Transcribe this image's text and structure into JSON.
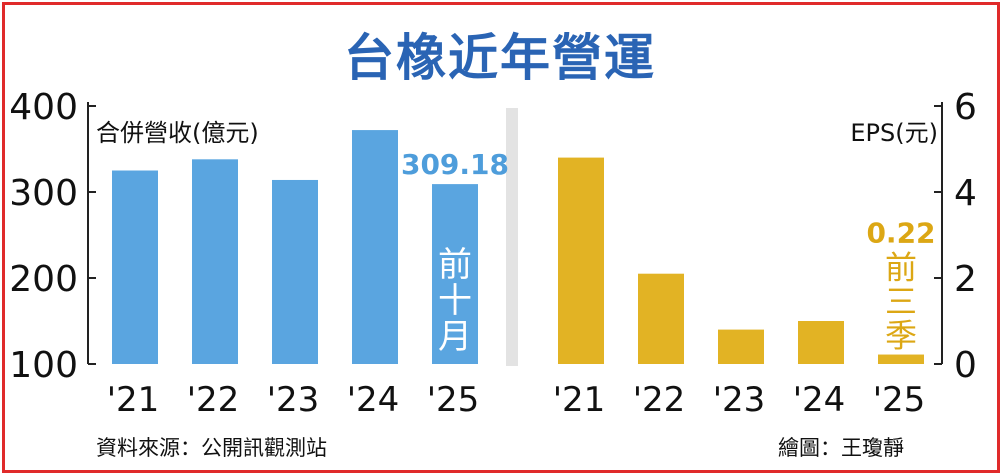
{
  "title": "台橡近年營運",
  "source": "資料來源：公開訊觀測站",
  "credit": "繪圖：王瓊靜",
  "colors": {
    "revenue": "#5aa5e0",
    "eps": "#e2b324",
    "title": "#2a64b4",
    "frame": "#e02a2a",
    "revenue_label": "#4e9ddb",
    "eps_label": "#dca714"
  },
  "chart_data": [
    {
      "type": "bar",
      "ylabel": "合併營收(億元)",
      "categories": [
        "'21",
        "'22",
        "'23",
        "'24",
        "'25"
      ],
      "values": [
        325,
        338,
        314,
        372,
        309.18
      ],
      "ylim": [
        100,
        400
      ],
      "yticks": [
        "100",
        "200",
        "300",
        "400"
      ],
      "annotation": {
        "value_label": "309.18",
        "note": [
          "前",
          "十",
          "月"
        ]
      }
    },
    {
      "type": "bar",
      "ylabel": "EPS(元)",
      "categories": [
        "'21",
        "'22",
        "'23",
        "'24",
        "'25"
      ],
      "values": [
        4.8,
        2.1,
        0.8,
        1.0,
        0.22
      ],
      "ylim": [
        0,
        6
      ],
      "yticks": [
        "0",
        "2",
        "4",
        "6"
      ],
      "annotation": {
        "value_label": "0.22",
        "note": [
          "前",
          "三",
          "季"
        ]
      }
    }
  ]
}
